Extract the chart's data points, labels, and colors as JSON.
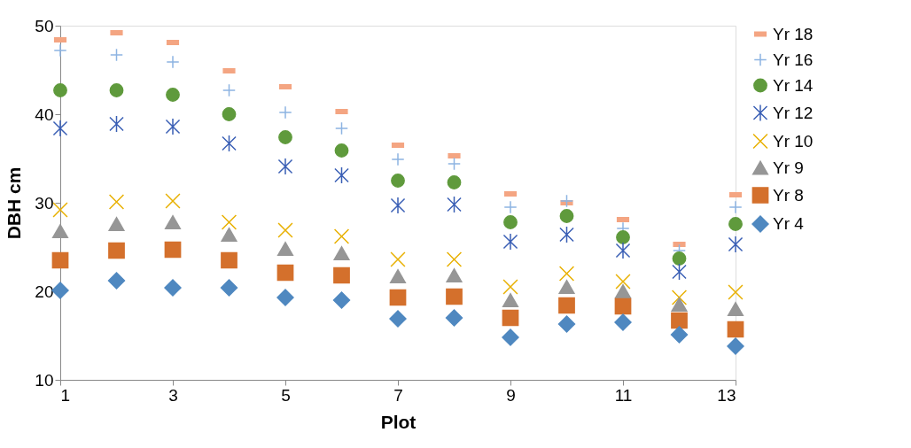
{
  "chart_data": {
    "type": "scatter",
    "xlabel": "Plot",
    "ylabel": "DBH cm",
    "x": [
      1,
      2,
      3,
      4,
      5,
      6,
      7,
      8,
      9,
      10,
      11,
      12,
      13
    ],
    "xlim": [
      1,
      13
    ],
    "xticks": [
      1,
      3,
      5,
      7,
      9,
      11,
      13
    ],
    "ylim": [
      10,
      50
    ],
    "yticks": [
      10,
      20,
      30,
      40,
      50
    ],
    "grid": false,
    "legend": "right",
    "series": [
      {
        "name": "Yr 18",
        "color": "#f4a582",
        "values": [
          48.4,
          49.2,
          48.1,
          44.9,
          43.1,
          40.3,
          36.5,
          35.3,
          31.0,
          30.0,
          28.1,
          25.3,
          30.9
        ]
      },
      {
        "name": "Yr 16",
        "color": "#8db4e2",
        "marker": "cross",
        "values": [
          47.2,
          46.7,
          45.9,
          42.7,
          40.2,
          38.4,
          34.9,
          34.4,
          29.5,
          30.2,
          27.1,
          24.6,
          29.5
        ]
      },
      {
        "name": "Yr 14",
        "color": "#5f9a3c",
        "marker": "circle",
        "values": [
          42.7,
          42.7,
          42.2,
          40.0,
          37.4,
          35.9,
          32.5,
          32.3,
          27.8,
          28.5,
          26.1,
          23.7,
          27.6
        ]
      },
      {
        "name": "Yr 12",
        "color": "#3a5fb5",
        "values": [
          38.4,
          38.9,
          38.6,
          36.7,
          34.1,
          33.1,
          29.7,
          29.8,
          25.6,
          26.4,
          24.6,
          22.2,
          25.3
        ]
      },
      {
        "name": "Yr 10",
        "color": "#e8b000",
        "marker": "x",
        "values": [
          29.2,
          30.1,
          30.2,
          27.8,
          26.9,
          26.2,
          23.6,
          23.6,
          20.5,
          22.0,
          21.1,
          19.3,
          19.9
        ]
      },
      {
        "name": "Yr 9",
        "color": "#969696",
        "marker": "triangle",
        "values": [
          26.8,
          27.6,
          27.8,
          26.4,
          24.8,
          24.3,
          21.7,
          21.8,
          19.0,
          20.5,
          20.0,
          18.5,
          18.0
        ]
      },
      {
        "name": "Yr 8",
        "color": "#d4702c",
        "marker": "square",
        "values": [
          23.5,
          24.6,
          24.7,
          23.5,
          22.1,
          21.8,
          19.3,
          19.4,
          17.0,
          18.4,
          18.3,
          16.7,
          15.7
        ]
      },
      {
        "name": "Yr 4",
        "color": "#4f88c0",
        "marker": "diamond",
        "values": [
          20.1,
          21.2,
          20.4,
          20.4,
          19.3,
          19.0,
          16.9,
          17.0,
          14.8,
          16.3,
          16.5,
          15.1,
          13.8
        ]
      }
    ]
  }
}
